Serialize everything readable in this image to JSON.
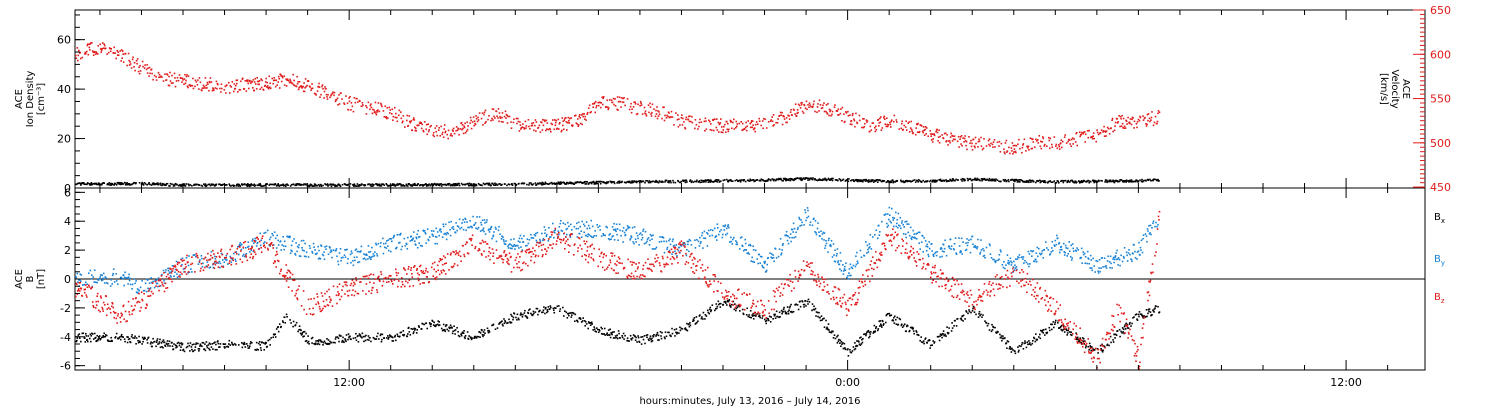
{
  "chart_data": {
    "type": "scatter",
    "xlabel": "hours:minutes, July 13, 2016 – July 14, 2016",
    "x_unit": "hours after 00:00 July 13, 2016",
    "xlim": [
      5.4,
      37.9
    ],
    "x_ticks": [
      {
        "value": 12,
        "label": "12:00"
      },
      {
        "value": 24,
        "label": "0:00"
      },
      {
        "value": 36,
        "label": "12:00"
      }
    ],
    "grid": false,
    "panels": [
      {
        "name": "density-velocity",
        "ylabel_lines": [
          "ACE",
          "Ion Density",
          "[cm⁻³]"
        ],
        "ylim": [
          0,
          72
        ],
        "y_ticks": [
          0,
          20,
          40,
          60
        ],
        "y2label_lines": [
          "ACE",
          "Velocity",
          "[km/s]"
        ],
        "y2lim": [
          449,
          650
        ],
        "y2_ticks": [
          450,
          500,
          550,
          600,
          650
        ],
        "y2_color": "#e01b1b",
        "series": [
          {
            "name": "Ion Density",
            "axis": "left",
            "color": "#000000",
            "noise": 0.5,
            "x": [
              5.4,
              7.0,
              8.0,
              10.0,
              12.0,
              14.0,
              16.0,
              17.0,
              18.0,
              19.0,
              20.0,
              21.0,
              22.0,
              23.0,
              24.0,
              25.0,
              26.0,
              27.0,
              28.0,
              29.0,
              30.0,
              31.0,
              31.5
            ],
            "values": [
              2.0,
              2.0,
              1.5,
              1.5,
              1.5,
              1.6,
              1.8,
              2.2,
              2.5,
              2.8,
              3.0,
              3.2,
              3.5,
              4.0,
              3.5,
              3.0,
              3.2,
              3.8,
              3.3,
              2.8,
              3.0,
              3.2,
              3.5
            ]
          },
          {
            "name": "Velocity",
            "axis": "right",
            "color": "#e01b1b",
            "noise": 8,
            "x": [
              5.4,
              6.0,
              6.5,
              7.0,
              7.5,
              8.0,
              9.0,
              10.0,
              10.5,
              11.0,
              11.5,
              12.0,
              12.5,
              13.0,
              13.5,
              14.0,
              14.5,
              15.0,
              15.5,
              16.0,
              16.5,
              17.0,
              17.5,
              18.0,
              18.5,
              19.0,
              19.5,
              20.0,
              21.0,
              22.0,
              22.5,
              23.0,
              23.5,
              24.0,
              24.5,
              25.0,
              25.5,
              26.0,
              26.5,
              27.0,
              27.5,
              28.0,
              28.5,
              29.0,
              29.5,
              30.0,
              30.5,
              31.0,
              31.5
            ],
            "values": [
              600,
              610,
              600,
              585,
              575,
              570,
              565,
              568,
              572,
              565,
              555,
              545,
              540,
              535,
              522,
              515,
              512,
              525,
              535,
              522,
              520,
              520,
              525,
              545,
              545,
              540,
              535,
              525,
              520,
              522,
              530,
              545,
              540,
              530,
              520,
              525,
              520,
              510,
              505,
              500,
              498,
              495,
              502,
              500,
              505,
              510,
              525,
              525,
              530
            ]
          }
        ]
      },
      {
        "name": "magnetic-field",
        "ylabel_lines": [
          "ACE",
          "B",
          "[nT]"
        ],
        "ylim": [
          -6.3,
          6.3
        ],
        "y_ticks": [
          -6,
          -4,
          -2,
          0,
          2,
          4,
          6
        ],
        "zero_line": true,
        "series": [
          {
            "name": "B",
            "subscript": "x",
            "color": "#000000",
            "noise": 0.3,
            "x": [
              5.4,
              6.5,
              7.0,
              8.0,
              9.0,
              10.0,
              10.5,
              11.0,
              11.5,
              12.0,
              13.0,
              14.0,
              15.0,
              16.0,
              17.0,
              18.0,
              19.0,
              20.0,
              21.0,
              22.0,
              23.0,
              24.0,
              25.0,
              26.0,
              27.0,
              28.0,
              29.0,
              30.0,
              31.0,
              31.5
            ],
            "values": [
              -4.0,
              -4.0,
              -4.2,
              -4.7,
              -4.5,
              -4.6,
              -2.5,
              -4.2,
              -4.2,
              -4.0,
              -4.0,
              -3.0,
              -4.0,
              -2.5,
              -2.0,
              -3.5,
              -4.2,
              -3.5,
              -1.5,
              -2.8,
              -1.5,
              -5.0,
              -2.5,
              -4.5,
              -2.0,
              -5.0,
              -3.0,
              -5.0,
              -2.5,
              -2.0
            ]
          },
          {
            "name": "B",
            "subscript": "y",
            "color": "#1a83d6",
            "noise": 0.6,
            "x": [
              5.4,
              6.5,
              7.0,
              8.0,
              9.0,
              10.0,
              11.0,
              12.0,
              13.0,
              14.0,
              15.0,
              16.0,
              17.0,
              18.0,
              19.0,
              20.0,
              21.0,
              22.0,
              23.0,
              24.0,
              25.0,
              26.0,
              27.0,
              28.0,
              29.0,
              30.0,
              31.0,
              31.5
            ],
            "values": [
              0.0,
              0.2,
              -0.5,
              1.0,
              1.5,
              3.0,
              2.0,
              1.5,
              2.5,
              3.0,
              4.0,
              2.5,
              3.5,
              3.5,
              3.0,
              2.0,
              3.5,
              1.0,
              4.5,
              0.5,
              4.5,
              2.0,
              2.5,
              1.0,
              2.5,
              1.0,
              2.0,
              4.5
            ]
          },
          {
            "name": "B",
            "subscript": "z",
            "color": "#e01b1b",
            "noise": 0.7,
            "x": [
              5.4,
              6.5,
              7.0,
              8.0,
              9.0,
              10.0,
              11.0,
              12.0,
              13.0,
              14.0,
              15.0,
              16.0,
              17.0,
              18.0,
              19.0,
              20.0,
              21.0,
              22.0,
              23.0,
              24.0,
              25.0,
              26.0,
              27.0,
              28.0,
              29.0,
              30.0,
              30.5,
              31.0,
              31.5
            ],
            "values": [
              -0.5,
              -2.5,
              -1.5,
              1.0,
              1.5,
              2.5,
              -2.0,
              -0.5,
              0.0,
              0.5,
              2.5,
              1.0,
              3.0,
              1.5,
              0.5,
              2.0,
              -1.0,
              -2.0,
              1.0,
              -2.0,
              3.0,
              0.5,
              -1.5,
              0.5,
              -2.0,
              -5.5,
              -2.0,
              -5.5,
              4.5
            ]
          }
        ]
      }
    ]
  }
}
